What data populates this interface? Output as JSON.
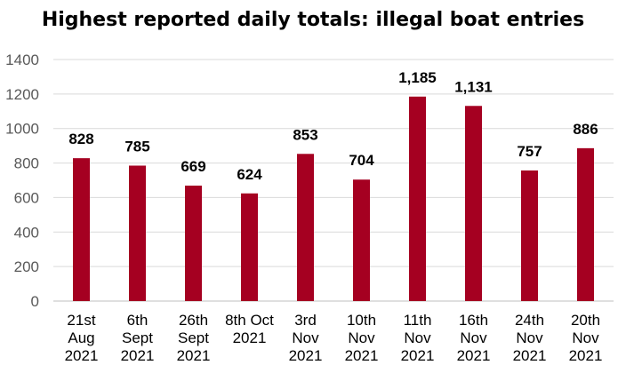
{
  "chart_data": {
    "type": "bar",
    "title": "Highest reported daily totals: illegal boat entries",
    "categories": [
      [
        "21st",
        "Aug",
        "2021"
      ],
      [
        "6th",
        "Sept",
        "2021"
      ],
      [
        "26th",
        "Sept",
        "2021"
      ],
      [
        "8th Oct",
        "2021"
      ],
      [
        "3rd",
        "Nov",
        "2021"
      ],
      [
        "10th",
        "Nov",
        "2021"
      ],
      [
        "11th",
        "Nov",
        "2021"
      ],
      [
        "16th",
        "Nov",
        "2021"
      ],
      [
        "24th",
        "Nov",
        "2021"
      ],
      [
        "20th",
        "Nov",
        "2021"
      ]
    ],
    "values": [
      828,
      785,
      669,
      624,
      853,
      704,
      1185,
      1131,
      757,
      886
    ],
    "data_labels": [
      "828",
      "785",
      "669",
      "624",
      "853",
      "704",
      "1,185",
      "1,131",
      "757",
      "886"
    ],
    "ylim": [
      0,
      1400
    ],
    "yticks": [
      0,
      200,
      400,
      600,
      800,
      1000,
      1200,
      1400
    ],
    "grid": true,
    "legend": "none",
    "bar_color": "#A50021",
    "grid_color": "#D9D9D9"
  }
}
